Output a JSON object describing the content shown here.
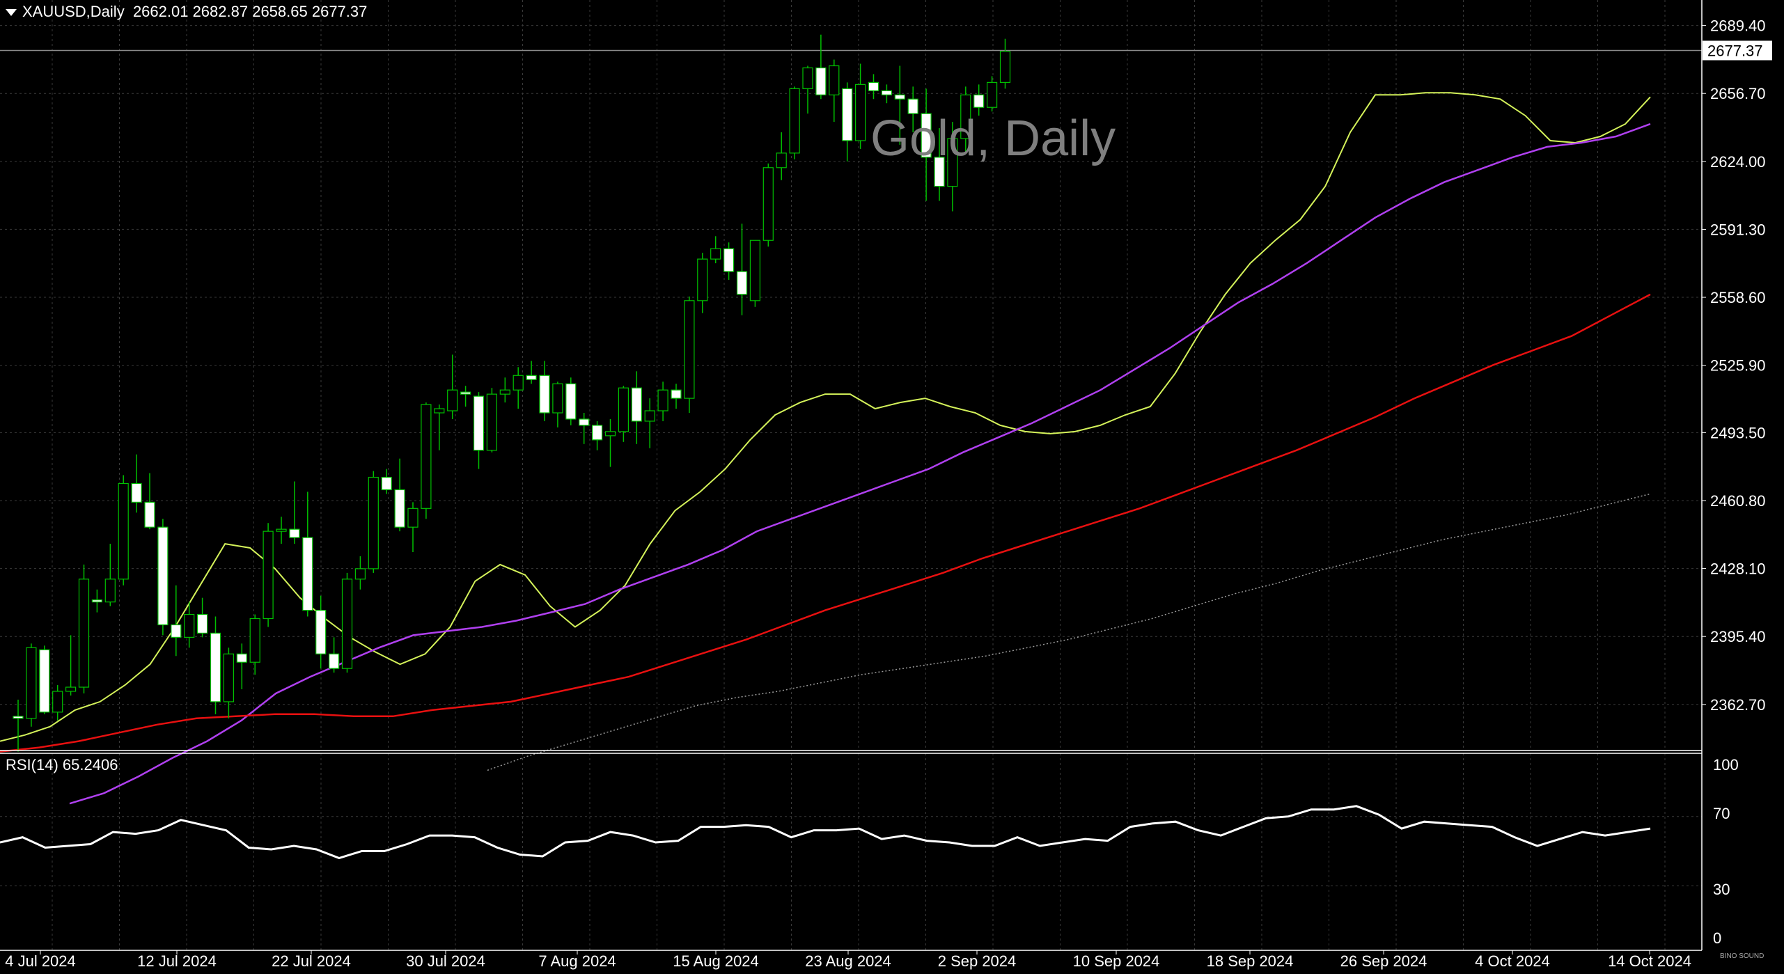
{
  "header": {
    "symbol": "XAUUSD,Daily",
    "ohlc": "2662.01 2682.87 2658.65 2677.37"
  },
  "watermark": "Gold, Daily",
  "current_price_label": "2677.37",
  "rsi_label": "RSI(14) 65.2406",
  "logo_text": "BINO SOUND",
  "colors": {
    "background": "#000000",
    "grid": "#3a3a3a",
    "bull_body": "#000000",
    "bull_wick": "#00c000",
    "bear_body": "#ffffff",
    "ma_fast": "#d4f25a",
    "ma_mid": "#b040f0",
    "ma_slow": "#e81010",
    "ma_long": "#9a9a9a",
    "rsi_line": "#ffffff"
  },
  "chart_data": {
    "type": "line",
    "title": "Gold, Daily",
    "price_axis": {
      "ticks": [
        "2689.40",
        "2656.70",
        "2624.00",
        "2591.30",
        "2558.60",
        "2525.90",
        "2493.50",
        "2460.80",
        "2428.10",
        "2395.40",
        "2362.70"
      ],
      "ylim": [
        2340,
        2698
      ]
    },
    "time_axis": {
      "ticks": [
        "4 Jul 2024",
        "12 Jul 2024",
        "22 Jul 2024",
        "30 Jul 2024",
        "7 Aug 2024",
        "15 Aug 2024",
        "23 Aug 2024",
        "2 Sep 2024",
        "10 Sep 2024",
        "18 Sep 2024",
        "26 Sep 2024",
        "4 Oct 2024",
        "14 Oct 2024"
      ]
    },
    "candles": [
      {
        "o": 2357,
        "h": 2365,
        "l": 2340,
        "c": 2356
      },
      {
        "o": 2356,
        "h": 2392,
        "l": 2352,
        "c": 2390
      },
      {
        "o": 2389,
        "h": 2391,
        "l": 2358,
        "c": 2359
      },
      {
        "o": 2359,
        "h": 2372,
        "l": 2355,
        "c": 2369
      },
      {
        "o": 2369,
        "h": 2396,
        "l": 2367,
        "c": 2371
      },
      {
        "o": 2371,
        "h": 2430,
        "l": 2368,
        "c": 2423
      },
      {
        "o": 2413,
        "h": 2418,
        "l": 2407,
        "c": 2412
      },
      {
        "o": 2412,
        "h": 2440,
        "l": 2410,
        "c": 2423
      },
      {
        "o": 2423,
        "h": 2473,
        "l": 2420,
        "c": 2469
      },
      {
        "o": 2469,
        "h": 2483,
        "l": 2455,
        "c": 2460
      },
      {
        "o": 2460,
        "h": 2474,
        "l": 2447,
        "c": 2448
      },
      {
        "o": 2448,
        "h": 2452,
        "l": 2396,
        "c": 2401
      },
      {
        "o": 2401,
        "h": 2420,
        "l": 2386,
        "c": 2395
      },
      {
        "o": 2395,
        "h": 2412,
        "l": 2390,
        "c": 2406
      },
      {
        "o": 2406,
        "h": 2414,
        "l": 2395,
        "c": 2397
      },
      {
        "o": 2397,
        "h": 2405,
        "l": 2358,
        "c": 2364
      },
      {
        "o": 2364,
        "h": 2390,
        "l": 2356,
        "c": 2387
      },
      {
        "o": 2387,
        "h": 2392,
        "l": 2370,
        "c": 2383
      },
      {
        "o": 2383,
        "h": 2406,
        "l": 2377,
        "c": 2404
      },
      {
        "o": 2404,
        "h": 2450,
        "l": 2400,
        "c": 2446
      },
      {
        "o": 2446,
        "h": 2453,
        "l": 2440,
        "c": 2447
      },
      {
        "o": 2447,
        "h": 2470,
        "l": 2440,
        "c": 2443
      },
      {
        "o": 2443,
        "h": 2465,
        "l": 2405,
        "c": 2408
      },
      {
        "o": 2408,
        "h": 2415,
        "l": 2380,
        "c": 2387
      },
      {
        "o": 2387,
        "h": 2395,
        "l": 2378,
        "c": 2380
      },
      {
        "o": 2380,
        "h": 2426,
        "l": 2378,
        "c": 2423
      },
      {
        "o": 2423,
        "h": 2434,
        "l": 2418,
        "c": 2428
      },
      {
        "o": 2428,
        "h": 2475,
        "l": 2426,
        "c": 2472
      },
      {
        "o": 2472,
        "h": 2476,
        "l": 2464,
        "c": 2466
      },
      {
        "o": 2466,
        "h": 2481,
        "l": 2446,
        "c": 2448
      },
      {
        "o": 2448,
        "h": 2460,
        "l": 2436,
        "c": 2457
      },
      {
        "o": 2457,
        "h": 2508,
        "l": 2452,
        "c": 2507
      },
      {
        "o": 2503,
        "h": 2507,
        "l": 2485,
        "c": 2505
      },
      {
        "o": 2504,
        "h": 2531,
        "l": 2500,
        "c": 2514
      },
      {
        "o": 2513,
        "h": 2516,
        "l": 2506,
        "c": 2512
      },
      {
        "o": 2511,
        "h": 2513,
        "l": 2476,
        "c": 2485
      },
      {
        "o": 2485,
        "h": 2515,
        "l": 2484,
        "c": 2512
      },
      {
        "o": 2512,
        "h": 2520,
        "l": 2508,
        "c": 2514
      },
      {
        "o": 2514,
        "h": 2525,
        "l": 2505,
        "c": 2521
      },
      {
        "o": 2521,
        "h": 2528,
        "l": 2517,
        "c": 2519
      },
      {
        "o": 2521,
        "h": 2528,
        "l": 2499,
        "c": 2503
      },
      {
        "o": 2503,
        "h": 2518,
        "l": 2496,
        "c": 2517
      },
      {
        "o": 2517,
        "h": 2520,
        "l": 2497,
        "c": 2500
      },
      {
        "o": 2500,
        "h": 2503,
        "l": 2488,
        "c": 2497
      },
      {
        "o": 2497,
        "h": 2499,
        "l": 2485,
        "c": 2490
      },
      {
        "o": 2492,
        "h": 2500,
        "l": 2477,
        "c": 2494
      },
      {
        "o": 2494,
        "h": 2516,
        "l": 2489,
        "c": 2515
      },
      {
        "o": 2515,
        "h": 2523,
        "l": 2488,
        "c": 2499
      },
      {
        "o": 2499,
        "h": 2510,
        "l": 2486,
        "c": 2504
      },
      {
        "o": 2504,
        "h": 2518,
        "l": 2499,
        "c": 2514
      },
      {
        "o": 2514,
        "h": 2517,
        "l": 2505,
        "c": 2510
      },
      {
        "o": 2510,
        "h": 2559,
        "l": 2503,
        "c": 2557
      },
      {
        "o": 2557,
        "h": 2580,
        "l": 2551,
        "c": 2577
      },
      {
        "o": 2577,
        "h": 2588,
        "l": 2575,
        "c": 2582
      },
      {
        "o": 2582,
        "h": 2585,
        "l": 2567,
        "c": 2571
      },
      {
        "o": 2571,
        "h": 2594,
        "l": 2550,
        "c": 2560
      },
      {
        "o": 2557,
        "h": 2586,
        "l": 2554,
        "c": 2586
      },
      {
        "o": 2586,
        "h": 2623,
        "l": 2583,
        "c": 2621
      },
      {
        "o": 2621,
        "h": 2638,
        "l": 2615,
        "c": 2628
      },
      {
        "o": 2628,
        "h": 2660,
        "l": 2625,
        "c": 2659
      },
      {
        "o": 2659,
        "h": 2670,
        "l": 2647,
        "c": 2669
      },
      {
        "o": 2669,
        "h": 2685,
        "l": 2654,
        "c": 2656
      },
      {
        "o": 2656,
        "h": 2673,
        "l": 2643,
        "c": 2670
      },
      {
        "o": 2659,
        "h": 2662,
        "l": 2624,
        "c": 2634
      },
      {
        "o": 2634,
        "h": 2671,
        "l": 2630,
        "c": 2661
      },
      {
        "o": 2662,
        "h": 2666,
        "l": 2654,
        "c": 2658
      },
      {
        "o": 2658,
        "h": 2661,
        "l": 2652,
        "c": 2656
      },
      {
        "o": 2656,
        "h": 2670,
        "l": 2632,
        "c": 2654
      },
      {
        "o": 2654,
        "h": 2660,
        "l": 2638,
        "c": 2647
      },
      {
        "o": 2647,
        "h": 2659,
        "l": 2605,
        "c": 2626
      },
      {
        "o": 2626,
        "h": 2640,
        "l": 2605,
        "c": 2612
      },
      {
        "o": 2612,
        "h": 2643,
        "l": 2600,
        "c": 2635
      },
      {
        "o": 2635,
        "h": 2660,
        "l": 2628,
        "c": 2656
      },
      {
        "o": 2656,
        "h": 2661,
        "l": 2646,
        "c": 2650
      },
      {
        "o": 2650,
        "h": 2665,
        "l": 2648,
        "c": 2662
      },
      {
        "o": 2662,
        "h": 2683,
        "l": 2659,
        "c": 2677
      }
    ],
    "series": [
      {
        "values": [
          2345,
          2348,
          2352,
          2360,
          2364,
          2372,
          2382,
          2400,
          2420,
          2440,
          2438,
          2428,
          2414,
          2404,
          2395,
          2388,
          2382,
          2387,
          2400,
          2422,
          2430,
          2425,
          2410,
          2400,
          2408,
          2420,
          2440,
          2456,
          2465,
          2476,
          2490,
          2502,
          2508,
          2512,
          2512,
          2505,
          2508,
          2510,
          2506,
          2503,
          2497,
          2494,
          2493,
          2494,
          2497,
          2502,
          2506,
          2522,
          2542,
          2560,
          2575,
          2586,
          2596,
          2612,
          2638,
          2656,
          2656,
          2657,
          2657,
          2656,
          2654,
          2646,
          2634,
          2633,
          2636,
          2642,
          2655
        ]
      },
      {
        "values": [
          2315,
          2320,
          2328,
          2337,
          2345,
          2355,
          2368,
          2376,
          2383,
          2390,
          2396,
          2398,
          2400,
          2403,
          2407,
          2411,
          2418,
          2424,
          2430,
          2437,
          2446,
          2452,
          2458,
          2464,
          2470,
          2476,
          2484,
          2491,
          2498,
          2506,
          2514,
          2524,
          2534,
          2545,
          2556,
          2565,
          2575,
          2586,
          2597,
          2606,
          2614,
          2620,
          2626,
          2631,
          2633,
          2636,
          2642
        ]
      },
      {
        "values": [
          2340,
          2342,
          2345,
          2349,
          2353,
          2356,
          2357,
          2358,
          2358,
          2357,
          2357,
          2360,
          2362,
          2364,
          2368,
          2372,
          2376,
          2382,
          2388,
          2394,
          2401,
          2408,
          2414,
          2420,
          2426,
          2433,
          2439,
          2445,
          2451,
          2457,
          2464,
          2471,
          2478,
          2485,
          2493,
          2501,
          2510,
          2518,
          2526,
          2533,
          2540,
          2550,
          2560
        ]
      },
      {
        "values": [
          2331,
          2338,
          2344,
          2350,
          2356,
          2362,
          2366,
          2369,
          2373,
          2377,
          2380,
          2383,
          2386,
          2390,
          2394,
          2399,
          2404,
          2410,
          2416,
          2421,
          2427,
          2432,
          2437,
          2442,
          2446,
          2450,
          2454,
          2459,
          2464
        ]
      }
    ],
    "rsi": {
      "ylim": [
        0,
        100
      ],
      "ticks": [
        "100",
        "70",
        "30",
        "0"
      ],
      "values": [
        55,
        58,
        52,
        53,
        54,
        61,
        60,
        62,
        68,
        65,
        62,
        52,
        51,
        53,
        51,
        46,
        50,
        50,
        54,
        59,
        59,
        58,
        52,
        48,
        47,
        55,
        56,
        61,
        59,
        55,
        56,
        64,
        64,
        65,
        64,
        58,
        62,
        62,
        63,
        57,
        59,
        56,
        55,
        53,
        53,
        58,
        53,
        55,
        57,
        56,
        64,
        66,
        67,
        62,
        59,
        64,
        69,
        70,
        74,
        74,
        76,
        71,
        63,
        67,
        66,
        65,
        64,
        58,
        53,
        57,
        61,
        59,
        61,
        63
      ]
    }
  }
}
